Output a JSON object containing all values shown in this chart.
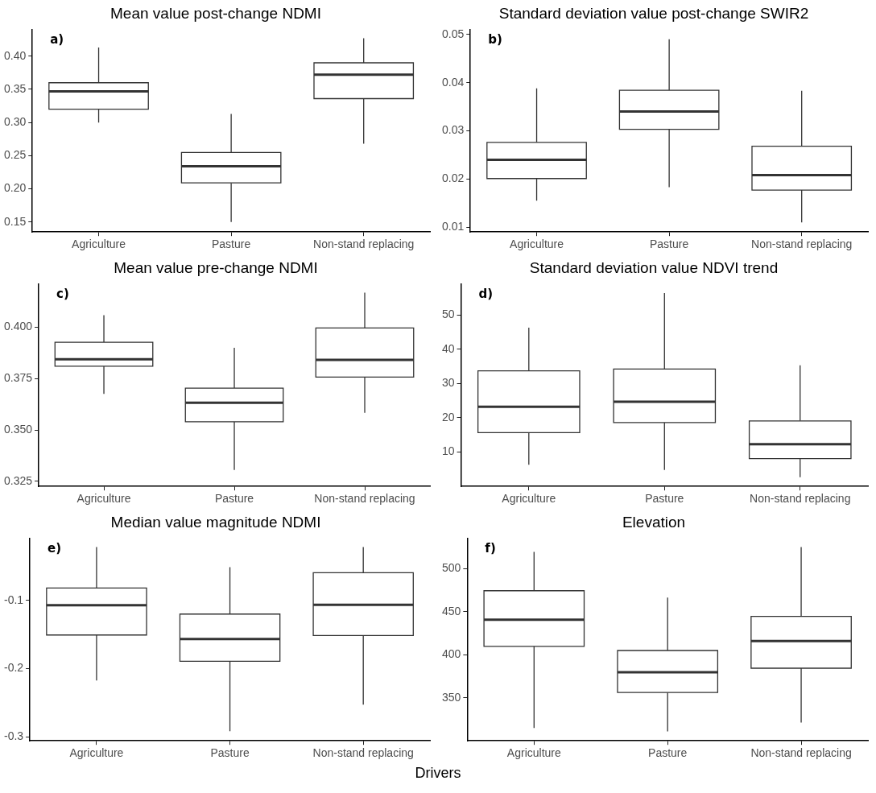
{
  "chart_data": [
    {
      "type": "box",
      "title": "Mean value post-change NDMI",
      "categories": [
        "Agriculture",
        "Pasture",
        "Non-stand replacing"
      ],
      "annotations": [
        "a)"
      ],
      "ylim": [
        0.135,
        0.44
      ],
      "yticks": [
        {
          "value": 0.15,
          "label": "0.15"
        },
        {
          "value": 0.2,
          "label": "0.20"
        },
        {
          "value": 0.25,
          "label": "0.25"
        },
        {
          "value": 0.3,
          "label": "0.30"
        },
        {
          "value": 0.35,
          "label": "0.35"
        },
        {
          "value": 0.4,
          "label": "0.40"
        }
      ],
      "boxes": [
        {
          "low": 0.3,
          "q1": 0.32,
          "median": 0.347,
          "q3": 0.36,
          "high": 0.413
        },
        {
          "low": 0.15,
          "q1": 0.209,
          "median": 0.234,
          "q3": 0.255,
          "high": 0.313
        },
        {
          "low": 0.268,
          "q1": 0.336,
          "median": 0.372,
          "q3": 0.39,
          "high": 0.427
        }
      ]
    },
    {
      "type": "box",
      "title": "Standard deviation value post-change SWIR2",
      "categories": [
        "Agriculture",
        "Pasture",
        "Non-stand replacing"
      ],
      "annotations": [
        "b)"
      ],
      "ylim": [
        0.009,
        0.051
      ],
      "yticks": [
        {
          "value": 0.01,
          "label": "0.01"
        },
        {
          "value": 0.02,
          "label": "0.02"
        },
        {
          "value": 0.03,
          "label": "0.03"
        },
        {
          "value": 0.04,
          "label": "0.04"
        },
        {
          "value": 0.05,
          "label": "0.05"
        }
      ],
      "boxes": [
        {
          "low": 0.0155,
          "q1": 0.0201,
          "median": 0.024,
          "q3": 0.0276,
          "high": 0.0388
        },
        {
          "low": 0.0183,
          "q1": 0.0303,
          "median": 0.034,
          "q3": 0.0384,
          "high": 0.049
        },
        {
          "low": 0.011,
          "q1": 0.0177,
          "median": 0.0208,
          "q3": 0.0268,
          "high": 0.0383
        }
      ]
    },
    {
      "type": "box",
      "title": "Mean value pre-change NDMI",
      "categories": [
        "Agriculture",
        "Pasture",
        "Non-stand replacing"
      ],
      "annotations": [
        "c)"
      ],
      "ylim": [
        0.3225,
        0.421
      ],
      "yticks": [
        {
          "value": 0.325,
          "label": "0.325"
        },
        {
          "value": 0.35,
          "label": "0.350"
        },
        {
          "value": 0.375,
          "label": "0.375"
        },
        {
          "value": 0.4,
          "label": "0.400"
        }
      ],
      "boxes": [
        {
          "low": 0.3675,
          "q1": 0.381,
          "median": 0.3844,
          "q3": 0.3927,
          "high": 0.4058
        },
        {
          "low": 0.3305,
          "q1": 0.354,
          "median": 0.3632,
          "q3": 0.3703,
          "high": 0.39
        },
        {
          "low": 0.3583,
          "q1": 0.3757,
          "median": 0.3841,
          "q3": 0.3996,
          "high": 0.4168
        }
      ]
    },
    {
      "type": "box",
      "title": "Standard deviation value NDVI trend",
      "categories": [
        "Agriculture",
        "Pasture",
        "Non-stand replacing"
      ],
      "annotations": [
        "d)"
      ],
      "ylim": [
        0,
        59
      ],
      "yticks": [
        10,
        20,
        30,
        40,
        50
      ],
      "boxes": [
        {
          "low": 6.3,
          "q1": 15.7,
          "median": 23.2,
          "q3": 33.7,
          "high": 46.3
        },
        {
          "low": 4.8,
          "q1": 18.6,
          "median": 24.7,
          "q3": 34.2,
          "high": 56.4
        },
        {
          "low": 2.7,
          "q1": 8.1,
          "median": 12.3,
          "q3": 19.1,
          "high": 35.3
        }
      ]
    },
    {
      "type": "box",
      "title": "Median value magnitude NDMI",
      "categories": [
        "Agriculture",
        "Pasture",
        "Non-stand replacing"
      ],
      "annotations": [
        "e)"
      ],
      "xlabel": "Drivers",
      "ylim": [
        -0.306,
        -0.009
      ],
      "yticks": [
        -0.3,
        -0.2,
        -0.1
      ],
      "boxes": [
        {
          "low": -0.2176,
          "q1": -0.1507,
          "median": -0.107,
          "q3": -0.0817,
          "high": -0.0217
        },
        {
          "low": -0.292,
          "q1": -0.1892,
          "median": -0.1566,
          "q3": -0.12,
          "high": -0.0513
        },
        {
          "low": -0.253,
          "q1": -0.1515,
          "median": -0.1065,
          "q3": -0.0594,
          "high": -0.0217
        }
      ]
    },
    {
      "type": "box",
      "title": "Elevation",
      "categories": [
        "Agriculture",
        "Pasture",
        "Non-stand replacing"
      ],
      "annotations": [
        "f)"
      ],
      "ylim": [
        300,
        535
      ],
      "yticks": [
        350,
        400,
        450,
        500
      ],
      "boxes": [
        {
          "low": 315,
          "q1": 409.7,
          "median": 440.6,
          "q3": 474.3,
          "high": 519.3
        },
        {
          "low": 311,
          "q1": 356.1,
          "median": 379.6,
          "q3": 404.9,
          "high": 466.3
        },
        {
          "low": 321.3,
          "q1": 384.3,
          "median": 415.8,
          "q3": 444.4,
          "high": 525
        }
      ]
    }
  ]
}
